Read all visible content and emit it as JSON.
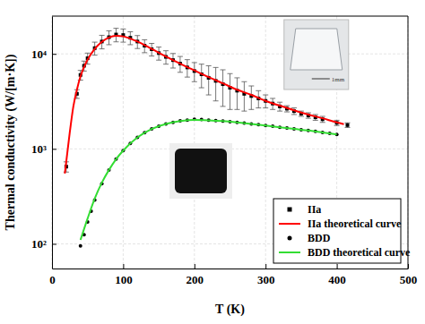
{
  "chart_data": {
    "type": "scatter",
    "x_label": "T (K)",
    "y_label": "Thermal conductivity (W/[m·K])",
    "xlim": [
      0,
      500
    ],
    "ylim": [
      55,
      25000
    ],
    "xticks": [
      0,
      100,
      200,
      300,
      400,
      500
    ],
    "yticks": [
      {
        "value": 100,
        "label": "10²"
      },
      {
        "value": 1000,
        "label": "10³"
      },
      {
        "value": 10000,
        "label": "10⁴"
      }
    ],
    "log": "y",
    "grid": true,
    "legend": "lower right",
    "annotations": [
      "1mm"
    ],
    "series": [
      {
        "name": "IIa",
        "type": "scatter",
        "marker": "square",
        "color": "#000000",
        "x": [
          20,
          35,
          40,
          45,
          50,
          60,
          70,
          80,
          90,
          100,
          110,
          120,
          130,
          140,
          150,
          160,
          170,
          180,
          190,
          200,
          210,
          220,
          230,
          240,
          250,
          260,
          270,
          280,
          290,
          300,
          310,
          320,
          330,
          340,
          350,
          360,
          370,
          380,
          400,
          415
        ],
        "values": [
          650,
          3800,
          6000,
          7500,
          9000,
          11500,
          13500,
          15000,
          16000,
          15800,
          14800,
          13500,
          12200,
          11200,
          10200,
          9300,
          8600,
          7900,
          7200,
          6600,
          6100,
          5600,
          5200,
          4800,
          4400,
          4100,
          3800,
          3600,
          3400,
          3200,
          3000,
          2800,
          2650,
          2500,
          2350,
          2250,
          2150,
          2050,
          1880,
          1780
        ],
        "errors": [
          80,
          400,
          700,
          900,
          1200,
          1800,
          2200,
          2500,
          2600,
          2500,
          2300,
          2100,
          1900,
          1700,
          1600,
          1500,
          1500,
          1500,
          1500,
          1500,
          1700,
          1900,
          2000,
          2000,
          1800,
          1500,
          1300,
          1000,
          700,
          500,
          400,
          300,
          200,
          200,
          150,
          150,
          150,
          150,
          120,
          100
        ]
      },
      {
        "name": "IIa theoretical curve",
        "type": "line",
        "line_style": "solid",
        "color": "#ff0000",
        "x": [
          18,
          25,
          30,
          35,
          40,
          50,
          60,
          70,
          80,
          90,
          100,
          110,
          120,
          140,
          160,
          180,
          200,
          220,
          240,
          260,
          280,
          300,
          320,
          340,
          360,
          380,
          400,
          410
        ],
        "values": [
          550,
          1500,
          2800,
          4200,
          5800,
          8700,
          11300,
          13400,
          14900,
          15500,
          15300,
          14500,
          13500,
          11300,
          9400,
          7900,
          6700,
          5700,
          4900,
          4200,
          3700,
          3200,
          2850,
          2550,
          2300,
          2100,
          1900,
          1820
        ]
      },
      {
        "name": "BDD",
        "type": "scatter",
        "marker": "circle",
        "color": "#000000",
        "x": [
          40,
          45,
          50,
          55,
          60,
          70,
          80,
          90,
          100,
          110,
          120,
          130,
          140,
          150,
          160,
          170,
          180,
          190,
          200,
          210,
          220,
          230,
          240,
          250,
          260,
          270,
          280,
          290,
          300,
          310,
          320,
          330,
          340,
          350,
          360,
          370,
          380,
          390,
          400
        ],
        "values": [
          95,
          125,
          170,
          220,
          290,
          430,
          600,
          780,
          960,
          1140,
          1320,
          1480,
          1620,
          1730,
          1830,
          1900,
          1970,
          2010,
          2050,
          2040,
          2010,
          1990,
          1960,
          1930,
          1900,
          1870,
          1830,
          1800,
          1760,
          1730,
          1690,
          1660,
          1620,
          1590,
          1560,
          1530,
          1490,
          1460,
          1420
        ]
      },
      {
        "name": "BDD theoretical curve",
        "type": "line",
        "line_style": "solid",
        "color": "#33dd33",
        "x": [
          40,
          50,
          60,
          70,
          80,
          90,
          100,
          120,
          140,
          160,
          180,
          200,
          220,
          240,
          260,
          280,
          300,
          320,
          340,
          360,
          380,
          400
        ],
        "values": [
          110,
          185,
          300,
          440,
          600,
          780,
          960,
          1320,
          1620,
          1830,
          1960,
          2020,
          2000,
          1960,
          1900,
          1830,
          1760,
          1690,
          1620,
          1560,
          1490,
          1420
        ]
      }
    ]
  }
}
